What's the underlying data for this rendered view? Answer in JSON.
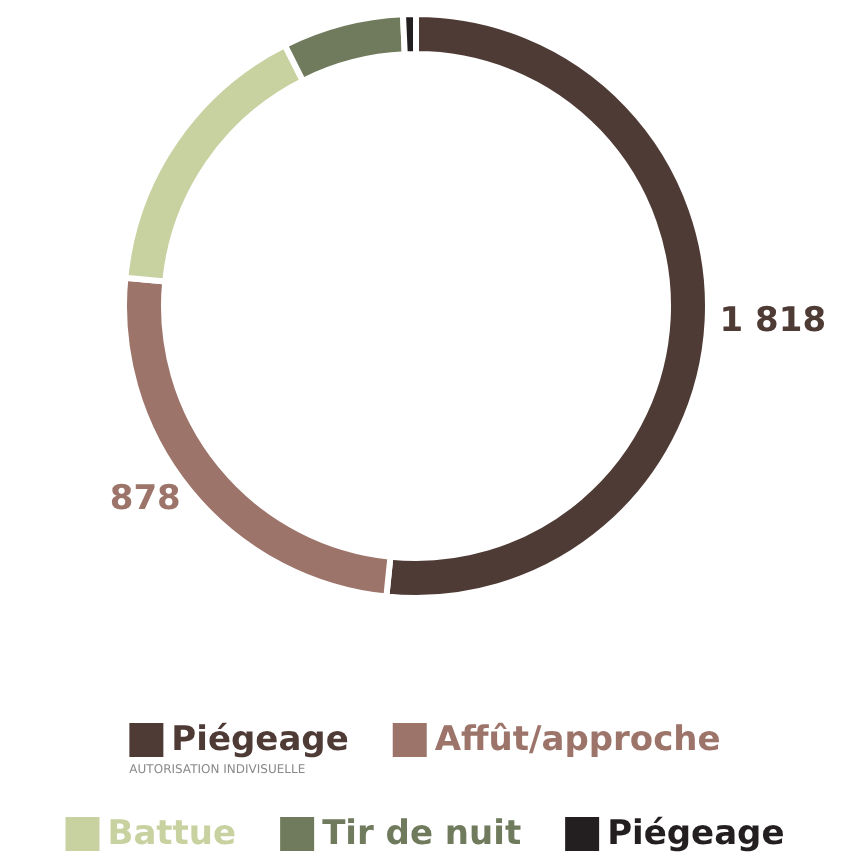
{
  "chart_data": {
    "type": "donut",
    "categories": [
      "Piégeage",
      "Affût/approche",
      "Battue",
      "Tir de nuit",
      "Piégeage"
    ],
    "values": [
      1818,
      878,
      565,
      236,
      25
    ],
    "colors": [
      "#4f3b35",
      "#9c7469",
      "#c8d1a0",
      "#6f7b5c",
      "#231f20"
    ],
    "value_labels": [
      "1 818",
      "878",
      null,
      null,
      null
    ],
    "annotations": [
      "AUTORISATION INDIVISUELLE"
    ],
    "legend": "bottom"
  }
}
